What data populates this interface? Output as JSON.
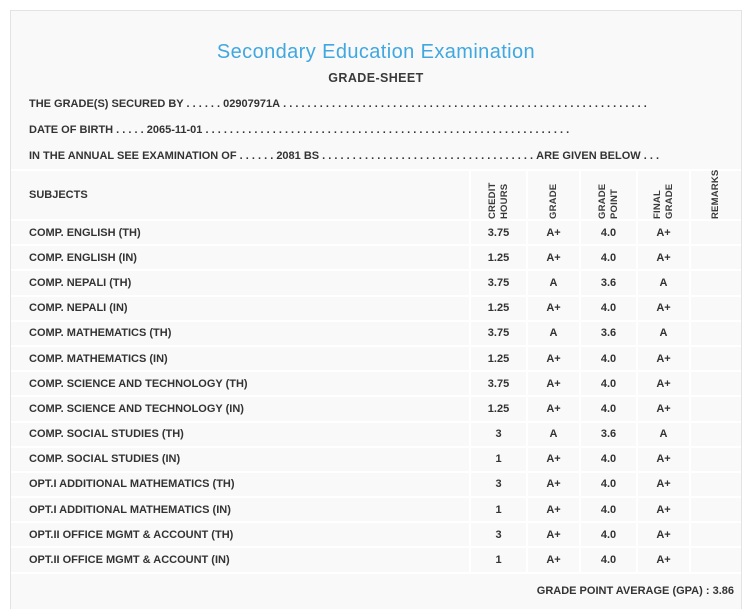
{
  "header": {
    "title": "Secondary Education Examination",
    "subtitle": "GRADE-SHEET",
    "accent_color": "#41a7e0"
  },
  "info_lines": [
    {
      "prefix": "THE GRADE(S) SECURED BY . . . . . . ",
      "value": "02907971A",
      "trail": " . . . . . . . . . . . . . . . . . . . . . . . . . . . . . . . . . . . . . . . . . . . . . . . . . . . . . . . . . . . .",
      "suffix": ""
    },
    {
      "prefix": "DATE OF BIRTH . . . . . ",
      "value": "2065-11-01",
      "trail": " . . . . . . . . . . . . . . . . . . . . . . . . . . . . . . . . . . . . . . . . . . . . . . . . . . . . . . . . . . . .",
      "suffix": ""
    },
    {
      "prefix": "IN THE ANNUAL SEE EXAMINATION OF . . . . . . ",
      "value": "2081 BS",
      "trail": " . . . . . . . . . . . . . . . . . . . . . . . . . . . . . . . . . . . . . . . . . . . . . . . . . . . . . . . . . . . . ",
      "suffix": "ARE GIVEN BELOW . . ."
    }
  ],
  "table": {
    "columns": {
      "subjects": "SUBJECTS",
      "credit_hours": "CREDIT HOURS",
      "grade": "GRADE",
      "grade_point": "GRADE POINT",
      "final_grade": "FINAL GRADE",
      "remarks": "REMARKS"
    },
    "rows": [
      {
        "subject": "COMP. ENGLISH (TH)",
        "credit_hours": "3.75",
        "grade": "A+",
        "grade_point": "4.0",
        "final_grade": "A+",
        "remarks": ""
      },
      {
        "subject": "COMP. ENGLISH (IN)",
        "credit_hours": "1.25",
        "grade": "A+",
        "grade_point": "4.0",
        "final_grade": "A+",
        "remarks": ""
      },
      {
        "subject": "COMP. NEPALI (TH)",
        "credit_hours": "3.75",
        "grade": "A",
        "grade_point": "3.6",
        "final_grade": "A",
        "remarks": ""
      },
      {
        "subject": "COMP. NEPALI (IN)",
        "credit_hours": "1.25",
        "grade": "A+",
        "grade_point": "4.0",
        "final_grade": "A+",
        "remarks": ""
      },
      {
        "subject": "COMP. MATHEMATICS (TH)",
        "credit_hours": "3.75",
        "grade": "A",
        "grade_point": "3.6",
        "final_grade": "A",
        "remarks": ""
      },
      {
        "subject": "COMP. MATHEMATICS (IN)",
        "credit_hours": "1.25",
        "grade": "A+",
        "grade_point": "4.0",
        "final_grade": "A+",
        "remarks": ""
      },
      {
        "subject": "COMP. SCIENCE AND TECHNOLOGY (TH)",
        "credit_hours": "3.75",
        "grade": "A+",
        "grade_point": "4.0",
        "final_grade": "A+",
        "remarks": ""
      },
      {
        "subject": "COMP. SCIENCE AND TECHNOLOGY (IN)",
        "credit_hours": "1.25",
        "grade": "A+",
        "grade_point": "4.0",
        "final_grade": "A+",
        "remarks": ""
      },
      {
        "subject": "COMP. SOCIAL STUDIES (TH)",
        "credit_hours": "3",
        "grade": "A",
        "grade_point": "3.6",
        "final_grade": "A",
        "remarks": ""
      },
      {
        "subject": "COMP. SOCIAL STUDIES (IN)",
        "credit_hours": "1",
        "grade": "A+",
        "grade_point": "4.0",
        "final_grade": "A+",
        "remarks": ""
      },
      {
        "subject": "OPT.I ADDITIONAL MATHEMATICS (TH)",
        "credit_hours": "3",
        "grade": "A+",
        "grade_point": "4.0",
        "final_grade": "A+",
        "remarks": ""
      },
      {
        "subject": "OPT.I ADDITIONAL MATHEMATICS (IN)",
        "credit_hours": "1",
        "grade": "A+",
        "grade_point": "4.0",
        "final_grade": "A+",
        "remarks": ""
      },
      {
        "subject": "OPT.II OFFICE MGMT & ACCOUNT (TH)",
        "credit_hours": "3",
        "grade": "A+",
        "grade_point": "4.0",
        "final_grade": "A+",
        "remarks": ""
      },
      {
        "subject": "OPT.II OFFICE MGMT & ACCOUNT (IN)",
        "credit_hours": "1",
        "grade": "A+",
        "grade_point": "4.0",
        "final_grade": "A+",
        "remarks": ""
      }
    ],
    "footer": {
      "gpa_label": "GRADE POINT AVERAGE (GPA) : ",
      "gpa_value": "3.86"
    }
  }
}
